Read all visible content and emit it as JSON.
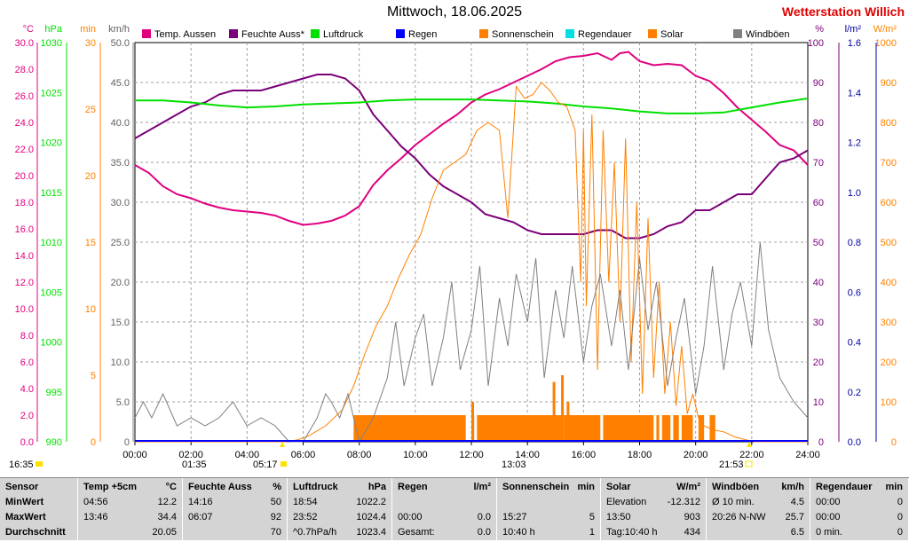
{
  "title": "Mittwoch, 18.06.2025",
  "station": "Wetterstation Willich",
  "colors": {
    "temp": "#e0007f",
    "humidity": "#7a007a",
    "pressure": "#00e000",
    "rain": "#0000ff",
    "sunshine": "#ff8000",
    "raintime": "#00e0e0",
    "solar": "#ff8000",
    "wind": "#808080"
  },
  "legend": [
    {
      "key": "temp",
      "label": "Temp. Aussen",
      "color": "#e0007f"
    },
    {
      "key": "humidity",
      "label": "Feuchte Auss*",
      "color": "#7a007a"
    },
    {
      "key": "pressure",
      "label": "Luftdruck",
      "color": "#00e000"
    },
    {
      "key": "rain",
      "label": "Regen",
      "color": "#0000ff"
    },
    {
      "key": "sunshine",
      "label": "Sonnenschein",
      "color": "#ff8000"
    },
    {
      "key": "raintime",
      "label": "Regendauer",
      "color": "#00e0e0"
    },
    {
      "key": "solar",
      "label": "Solar",
      "color": "#ff8000"
    },
    {
      "key": "wind",
      "label": "Windböen",
      "color": "#808080"
    }
  ],
  "chart_data": {
    "type": "line",
    "x_ticks": [
      "00:00",
      "02:00",
      "04:00",
      "06:00",
      "08:00",
      "10:00",
      "12:00",
      "14:00",
      "16:00",
      "18:00",
      "20:00",
      "22:00",
      "24:00"
    ],
    "axes": {
      "temp": {
        "unit": "°C",
        "ticks": [
          "0.0",
          "2.0",
          "4.0",
          "6.0",
          "8.0",
          "10.0",
          "12.0",
          "14.0",
          "16.0",
          "18.0",
          "20.0",
          "22.0",
          "24.0",
          "26.0",
          "28.0",
          "30.0"
        ],
        "range": [
          0,
          30
        ]
      },
      "pressure": {
        "unit": "hPa",
        "ticks": [
          "990",
          "995",
          "1000",
          "1005",
          "1010",
          "1015",
          "1020",
          "1025",
          "1030"
        ],
        "range": [
          990,
          1030
        ]
      },
      "sunshine": {
        "unit": "min",
        "ticks": [
          "0",
          "5",
          "10",
          "15",
          "20",
          "25",
          "30"
        ],
        "range": [
          0,
          30
        ]
      },
      "wind": {
        "unit": "km/h",
        "ticks": [
          "0",
          "5.0",
          "10.0",
          "15.0",
          "20.0",
          "25.0",
          "30.0",
          "35.0",
          "40.0",
          "45.0",
          "50.0"
        ],
        "range": [
          0,
          50
        ]
      },
      "humidity": {
        "unit": "%",
        "ticks": [
          "0",
          "10",
          "20",
          "30",
          "40",
          "50",
          "60",
          "70",
          "80",
          "90",
          "100"
        ],
        "range": [
          0,
          100
        ]
      },
      "rain": {
        "unit": "l/m²",
        "ticks": [
          "0.0",
          "0.2",
          "0.4",
          "0.6",
          "0.8",
          "1.0",
          "1.2",
          "1.4",
          "1.6"
        ],
        "range": [
          0,
          1.6
        ]
      },
      "solar": {
        "unit": "W/m²",
        "ticks": [
          "0",
          "100",
          "200",
          "300",
          "400",
          "500",
          "600",
          "700",
          "800",
          "900",
          "1000"
        ],
        "range": [
          0,
          1000
        ]
      }
    },
    "series": [
      {
        "name": "Temp. Aussen",
        "axis": "temp",
        "x": [
          0,
          0.5,
          1,
          1.5,
          2,
          2.5,
          3,
          3.5,
          4,
          4.5,
          5,
          5.5,
          6,
          6.5,
          7,
          7.5,
          8,
          8.5,
          9,
          9.5,
          10,
          10.5,
          11,
          11.5,
          12,
          12.5,
          13,
          13.5,
          14,
          14.5,
          15,
          15.5,
          16,
          16.5,
          17,
          17.3,
          17.6,
          18,
          18.5,
          19,
          19.5,
          20,
          20.5,
          21,
          21.5,
          22,
          22.5,
          23,
          23.5,
          24
        ],
        "y": [
          20.8,
          20.2,
          19.2,
          18.6,
          18.3,
          17.9,
          17.6,
          17.4,
          17.3,
          17.2,
          17.0,
          16.6,
          16.3,
          16.4,
          16.6,
          17.0,
          17.7,
          19.3,
          20.4,
          21.3,
          22.3,
          23.1,
          23.9,
          24.6,
          25.5,
          26.1,
          26.5,
          27.0,
          27.5,
          28.0,
          28.6,
          28.9,
          29.0,
          29.2,
          28.7,
          29.2,
          29.3,
          28.6,
          28.3,
          28.4,
          28.3,
          27.5,
          27.1,
          26.2,
          25.1,
          24.2,
          23.3,
          22.3,
          21.9,
          20.8
        ]
      },
      {
        "name": "Feuchte Auss*",
        "axis": "humidity",
        "x": [
          0,
          0.5,
          1,
          1.5,
          2,
          2.5,
          3,
          3.5,
          4,
          4.5,
          5,
          5.5,
          6,
          6.5,
          7,
          7.5,
          8,
          8.5,
          9,
          9.5,
          10,
          10.5,
          11,
          11.5,
          12,
          12.5,
          13,
          13.5,
          14,
          14.5,
          15,
          15.5,
          16,
          16.5,
          17,
          17.5,
          18,
          18.5,
          19,
          19.5,
          20,
          20.5,
          21,
          21.5,
          22,
          22.5,
          23,
          23.5,
          24
        ],
        "y": [
          76,
          78,
          80,
          82,
          84,
          85,
          87,
          88,
          88,
          88,
          89,
          90,
          91,
          92,
          92,
          91,
          88,
          82,
          78,
          74,
          71,
          67,
          64,
          62,
          60,
          57,
          56,
          55,
          53,
          52,
          52,
          52,
          52,
          53,
          53,
          51,
          51,
          52,
          54,
          55,
          58,
          58,
          60,
          62,
          62,
          66,
          70,
          71,
          73
        ]
      },
      {
        "name": "Luftdruck",
        "axis": "pressure",
        "x": [
          0,
          1,
          2,
          3,
          4,
          5,
          6,
          7,
          8,
          9,
          10,
          11,
          12,
          13,
          14,
          15,
          16,
          17,
          18,
          19,
          20,
          21,
          22,
          23,
          24
        ],
        "y": [
          1024.2,
          1024.2,
          1024.0,
          1023.7,
          1023.5,
          1023.6,
          1023.8,
          1023.9,
          1024.0,
          1024.2,
          1024.3,
          1024.3,
          1024.3,
          1024.2,
          1024.1,
          1023.9,
          1023.6,
          1023.4,
          1023.1,
          1022.9,
          1022.9,
          1023.0,
          1023.5,
          1024.0,
          1024.4
        ]
      },
      {
        "name": "Solar",
        "axis": "solar",
        "x": [
          0,
          5.4,
          5.8,
          6.2,
          6.8,
          7.4,
          7.8,
          8.2,
          8.6,
          9.0,
          9.4,
          9.8,
          10.2,
          10.6,
          11.0,
          11.4,
          11.8,
          12.2,
          12.6,
          13.0,
          13.3,
          13.6,
          13.9,
          14.2,
          14.5,
          14.8,
          15.1,
          15.4,
          15.7,
          15.9,
          16.0,
          16.1,
          16.3,
          16.5,
          16.7,
          16.9,
          17.1,
          17.3,
          17.5,
          17.7,
          17.9,
          18.1,
          18.3,
          18.5,
          18.7,
          18.9,
          19.1,
          19.3,
          19.5,
          19.7,
          19.9,
          20.1,
          20.3,
          20.6,
          21.0,
          21.4,
          21.8,
          22.1,
          24
        ],
        "y": [
          0,
          0,
          5,
          15,
          40,
          80,
          140,
          220,
          290,
          340,
          410,
          470,
          520,
          610,
          680,
          700,
          720,
          780,
          800,
          780,
          560,
          890,
          860,
          870,
          900,
          880,
          850,
          840,
          780,
          400,
          780,
          340,
          820,
          180,
          780,
          400,
          700,
          300,
          760,
          200,
          600,
          120,
          560,
          160,
          400,
          120,
          300,
          90,
          240,
          70,
          120,
          60,
          40,
          30,
          25,
          12,
          5,
          0,
          0
        ]
      },
      {
        "name": "Windböen",
        "axis": "wind",
        "x": [
          0,
          0.3,
          0.6,
          1.0,
          1.5,
          2.0,
          2.5,
          3.0,
          3.5,
          4.0,
          4.5,
          5.0,
          5.5,
          6.0,
          6.5,
          6.8,
          7.0,
          7.3,
          7.6,
          8.0,
          8.5,
          9.0,
          9.3,
          9.6,
          10.0,
          10.3,
          10.6,
          11.0,
          11.3,
          11.6,
          12.0,
          12.3,
          12.6,
          13.0,
          13.3,
          13.6,
          14.0,
          14.3,
          14.6,
          15.0,
          15.3,
          15.6,
          16.0,
          16.3,
          16.6,
          17.0,
          17.3,
          17.6,
          18.0,
          18.3,
          18.6,
          19.0,
          19.3,
          19.6,
          20.0,
          20.3,
          20.6,
          21.0,
          21.3,
          21.6,
          22.0,
          22.3,
          22.6,
          23.0,
          23.5,
          24
        ],
        "y": [
          3,
          5,
          3,
          6,
          2,
          3,
          2,
          3,
          5,
          2,
          3,
          2,
          0,
          0,
          3,
          6,
          5,
          3,
          6,
          0,
          3,
          8,
          15,
          7,
          13,
          16,
          7,
          13,
          20,
          9,
          14,
          22,
          7,
          18,
          12,
          21,
          15,
          23,
          8,
          19,
          13,
          22,
          10,
          17,
          21,
          12,
          19,
          9,
          23,
          14,
          20,
          7,
          13,
          18,
          6,
          12,
          22,
          9,
          16,
          20,
          12,
          25,
          14,
          8,
          5,
          3
        ]
      }
    ],
    "sunshine_bars": {
      "series_name": "Sonnenschein",
      "segments": [
        [
          7.8,
          11.8
        ],
        [
          12.0,
          12.1
        ],
        [
          12.2,
          15.3
        ],
        [
          14.9,
          15.0
        ],
        [
          15.1,
          15.2
        ],
        [
          15.3,
          16.6
        ],
        [
          16.7,
          18.5
        ],
        [
          18.6,
          18.7
        ],
        [
          18.8,
          19.1
        ],
        [
          19.2,
          19.4
        ],
        [
          19.5,
          19.9
        ],
        [
          20.1,
          20.3
        ],
        [
          20.5,
          20.7
        ]
      ],
      "minutes": 2,
      "peaks": [
        [
          12.0,
          3
        ],
        [
          14.9,
          4.5
        ],
        [
          15.2,
          5
        ],
        [
          15.4,
          3
        ]
      ]
    },
    "markers": {
      "sunrise": "05:17",
      "sunset": "21:53",
      "moonrise": "01:35",
      "moonset": "13:03",
      "time_start": "16:35"
    }
  },
  "stats": {
    "columns": [
      {
        "header": "Sensor",
        "unit": "",
        "rows": [
          "MinWert",
          "MaxWert",
          "Durchschnitt"
        ]
      },
      {
        "header": "Temp +5cm",
        "unit": "°C",
        "rows": [
          [
            "04:56",
            "12.2"
          ],
          [
            "13:46",
            "34.4"
          ],
          [
            "",
            "20.05"
          ]
        ]
      },
      {
        "header": "Feuchte Auss",
        "unit": "%",
        "rows": [
          [
            "14:16",
            "50"
          ],
          [
            "06:07",
            "92"
          ],
          [
            "",
            "70"
          ]
        ]
      },
      {
        "header": "Luftdruck",
        "unit": "hPa",
        "rows": [
          [
            "18:54",
            "1022.2"
          ],
          [
            "23:52",
            "1024.4"
          ],
          [
            "^0.7hPa/h",
            "1023.4"
          ]
        ]
      },
      {
        "header": "Regen",
        "unit": "l/m²",
        "rows": [
          [
            "",
            ""
          ],
          [
            "00:00",
            "0.0"
          ],
          [
            "Gesamt:",
            "0.0"
          ]
        ]
      },
      {
        "header": "Sonnenschein",
        "unit": "min",
        "rows": [
          [
            "",
            ""
          ],
          [
            "15:27",
            "5"
          ],
          [
            "10:40 h",
            "1"
          ]
        ]
      },
      {
        "header": "Solar",
        "unit": "W/m²",
        "rows": [
          [
            "Elevation",
            "-12.312"
          ],
          [
            "13:50",
            "903"
          ],
          [
            "Tag:10:40 h",
            "434"
          ]
        ]
      },
      {
        "header": "Windböen",
        "unit": "km/h",
        "rows": [
          [
            "Ø 10 min.",
            "4.5"
          ],
          [
            "20:26    N-NW",
            "25.7"
          ],
          [
            "",
            "6.5"
          ]
        ]
      },
      {
        "header": "Regendauer",
        "unit": "min",
        "rows": [
          [
            "00:00",
            "0"
          ],
          [
            "00:00",
            "0"
          ],
          [
            "0 min.",
            "0"
          ]
        ]
      }
    ]
  }
}
